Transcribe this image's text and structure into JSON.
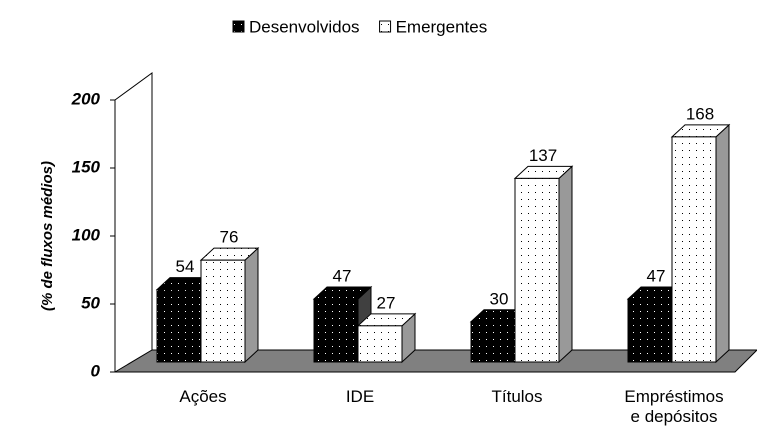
{
  "chart_data": {
    "type": "bar3d",
    "ylabel": "(% de fluxos médios)",
    "categories": [
      "Ações",
      "IDE",
      "Títulos",
      "Empréstimos\ne depósitos"
    ],
    "series": [
      {
        "name": "Desenvolvidos",
        "color": "#000000",
        "values": [
          54,
          47,
          30,
          47
        ]
      },
      {
        "name": "Emergentes",
        "color": "#ffffff",
        "values": [
          76,
          27,
          137,
          168
        ]
      }
    ],
    "ylim": [
      0,
      200
    ],
    "yticks": [
      0,
      50,
      100,
      150,
      200
    ],
    "grid": false,
    "legend": "top"
  }
}
